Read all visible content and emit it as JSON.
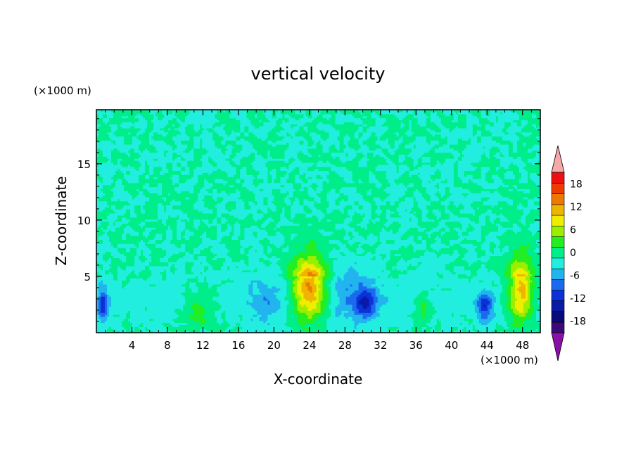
{
  "chart_data": {
    "type": "heatmap",
    "title": "vertical velocity",
    "xlabel": "X-coordinate",
    "ylabel": "Z-coordinate",
    "x_unit": "(×1000 m)",
    "y_unit": "(×1000 m)",
    "xlim": [
      0,
      50
    ],
    "ylim": [
      0,
      19.8
    ],
    "x_ticks": [
      4,
      8,
      12,
      16,
      20,
      24,
      28,
      32,
      36,
      40,
      44,
      48
    ],
    "y_ticks": [
      5,
      10,
      15
    ],
    "colorbar": {
      "levels": [
        -21,
        -18,
        -15,
        -12,
        -9,
        -6,
        -3,
        0,
        3,
        6,
        9,
        12,
        15,
        18,
        21
      ],
      "colors": [
        "#3a0a7a",
        "#0a0a7a",
        "#0a1aa8",
        "#0a32d8",
        "#1a6aee",
        "#22b4ee",
        "#22eee0",
        "#00ee8a",
        "#22ee22",
        "#9aee00",
        "#eeee00",
        "#eeb400",
        "#ee7800",
        "#ee3c00",
        "#ee1010"
      ],
      "under_color": "#8a10a8",
      "over_color": "#f4a8a8",
      "tick_labels": [
        "18",
        "12",
        "6",
        "0",
        "-6",
        "-12",
        "-18"
      ],
      "tick_values": [
        18,
        12,
        6,
        0,
        -6,
        -12,
        -18
      ]
    },
    "features": [
      {
        "x": 24,
        "z": 3.8,
        "peak": 16,
        "sx": 1.4,
        "sz": 1.8
      },
      {
        "x": 47.8,
        "z": 3.6,
        "peak": 14,
        "sx": 1.0,
        "sz": 1.8
      },
      {
        "x": 11.6,
        "z": 2.2,
        "peak": 5,
        "sx": 1.2,
        "sz": 1.1
      },
      {
        "x": 36.8,
        "z": 2.2,
        "peak": 5,
        "sx": 0.6,
        "sz": 1.0
      },
      {
        "x": 0.7,
        "z": 2.6,
        "peak": -10,
        "sx": 0.4,
        "sz": 1.0
      },
      {
        "x": 30.4,
        "z": 2.7,
        "peak": -10,
        "sx": 0.9,
        "sz": 0.9
      },
      {
        "x": 43.8,
        "z": 2.3,
        "peak": -10,
        "sx": 0.6,
        "sz": 0.9
      },
      {
        "x": 19.2,
        "z": 2.6,
        "peak": -4,
        "sx": 1.5,
        "sz": 1.5
      },
      {
        "x": 28.5,
        "z": 3.5,
        "peak": -4,
        "sx": 1.8,
        "sz": 2.2
      }
    ]
  }
}
